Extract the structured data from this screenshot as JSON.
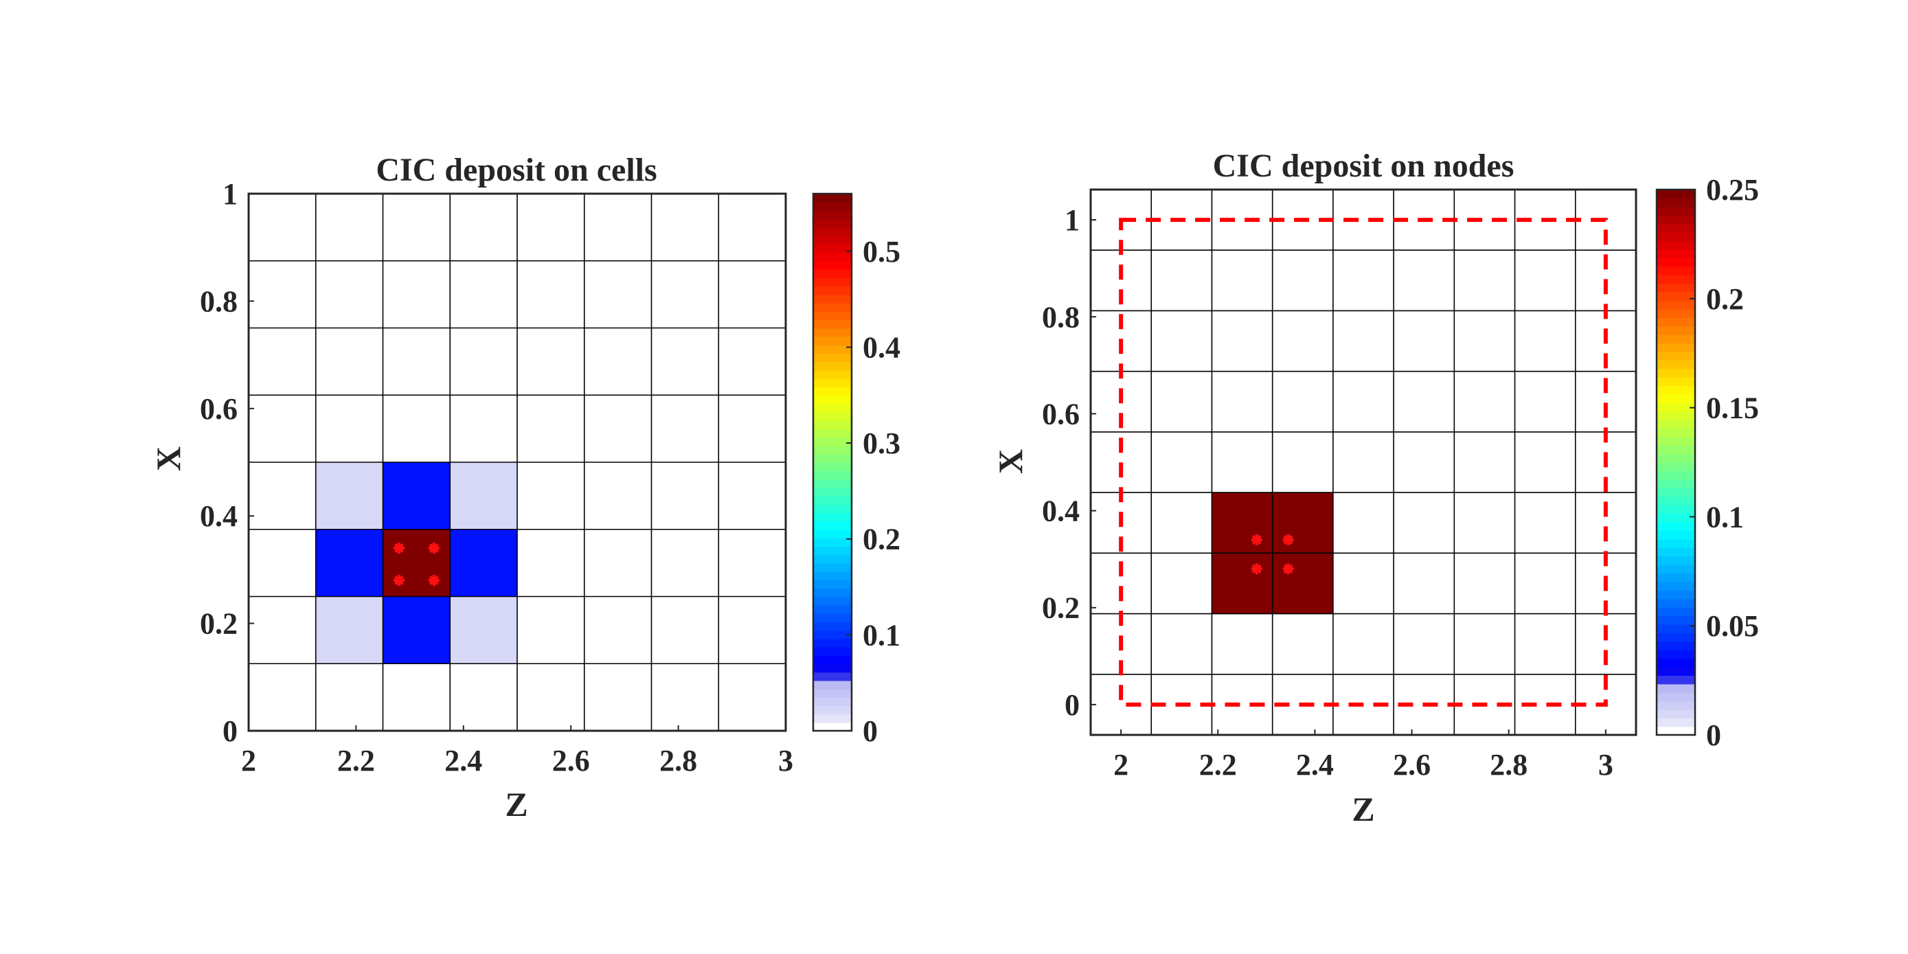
{
  "chart_data": [
    {
      "type": "heatmap",
      "title": "CIC deposit on cells",
      "xlabel": "Z",
      "ylabel": "X",
      "xlim": [
        2,
        3
      ],
      "ylim": [
        0,
        1
      ],
      "x_ticks": [
        "2",
        "2.2",
        "2.4",
        "2.6",
        "2.8",
        "3"
      ],
      "y_ticks": [
        "0",
        "0.2",
        "0.4",
        "0.6",
        "0.8",
        "1"
      ],
      "grid": {
        "z_edges": [
          2,
          2.125,
          2.25,
          2.375,
          2.5,
          2.625,
          2.75,
          2.875,
          3
        ],
        "x_edges": [
          0,
          0.125,
          0.25,
          0.375,
          0.5,
          0.625,
          0.75,
          0.875,
          1
        ]
      },
      "cells": [
        {
          "z": [
            2.125,
            2.25
          ],
          "x": [
            0.375,
            0.5
          ],
          "value": 0.02
        },
        {
          "z": [
            2.25,
            2.375
          ],
          "x": [
            0.375,
            0.5
          ],
          "value": 0.08
        },
        {
          "z": [
            2.375,
            2.5
          ],
          "x": [
            0.375,
            0.5
          ],
          "value": 0.02
        },
        {
          "z": [
            2.125,
            2.25
          ],
          "x": [
            0.25,
            0.375
          ],
          "value": 0.08
        },
        {
          "z": [
            2.25,
            2.375
          ],
          "x": [
            0.25,
            0.375
          ],
          "value": 0.56
        },
        {
          "z": [
            2.375,
            2.5
          ],
          "x": [
            0.25,
            0.375
          ],
          "value": 0.08
        },
        {
          "z": [
            2.125,
            2.25
          ],
          "x": [
            0.125,
            0.25
          ],
          "value": 0.02
        },
        {
          "z": [
            2.25,
            2.375
          ],
          "x": [
            0.125,
            0.25
          ],
          "value": 0.08
        },
        {
          "z": [
            2.375,
            2.5
          ],
          "x": [
            0.125,
            0.25
          ],
          "value": 0.02
        }
      ],
      "particles": [
        {
          "z": 2.28,
          "x": 0.34
        },
        {
          "z": 2.345,
          "x": 0.34
        },
        {
          "z": 2.28,
          "x": 0.28
        },
        {
          "z": 2.345,
          "x": 0.28
        }
      ],
      "colorbar": {
        "min": 0,
        "max": 0.56,
        "ticks": [
          "0",
          "0.1",
          "0.2",
          "0.3",
          "0.4",
          "0.5"
        ]
      }
    },
    {
      "type": "heatmap",
      "title": "CIC deposit on nodes",
      "xlabel": "Z",
      "ylabel": "X",
      "xlim": [
        1.9375,
        3.0625
      ],
      "ylim": [
        -0.0625,
        1.0625
      ],
      "x_ticks": [
        "2",
        "2.2",
        "2.4",
        "2.6",
        "2.8",
        "3"
      ],
      "y_ticks": [
        "0",
        "0.2",
        "0.4",
        "0.6",
        "0.8",
        "1"
      ],
      "grid": {
        "z_edges": [
          1.9375,
          2.0625,
          2.1875,
          2.3125,
          2.4375,
          2.5625,
          2.6875,
          2.8125,
          2.9375,
          3.0625
        ],
        "x_edges": [
          -0.0625,
          0.0625,
          0.1875,
          0.3125,
          0.4375,
          0.5625,
          0.6875,
          0.8125,
          0.9375,
          1.0625
        ]
      },
      "cells": [
        {
          "z": [
            2.1875,
            2.3125
          ],
          "x": [
            0.3125,
            0.4375
          ],
          "value": 0.25
        },
        {
          "z": [
            2.3125,
            2.4375
          ],
          "x": [
            0.3125,
            0.4375
          ],
          "value": 0.25
        },
        {
          "z": [
            2.1875,
            2.3125
          ],
          "x": [
            0.1875,
            0.3125
          ],
          "value": 0.25
        },
        {
          "z": [
            2.3125,
            2.4375
          ],
          "x": [
            0.1875,
            0.3125
          ],
          "value": 0.25
        }
      ],
      "particles": [
        {
          "z": 2.28,
          "x": 0.34
        },
        {
          "z": 2.345,
          "x": 0.34
        },
        {
          "z": 2.28,
          "x": 0.28
        },
        {
          "z": 2.345,
          "x": 0.28
        }
      ],
      "domain_box": {
        "z": [
          2,
          3
        ],
        "x": [
          0,
          1
        ],
        "color": "#ff0000",
        "style": "dashed"
      },
      "colorbar": {
        "min": 0,
        "max": 0.25,
        "ticks": [
          "0",
          "0.05",
          "0.1",
          "0.15",
          "0.2",
          "0.25"
        ]
      }
    }
  ]
}
